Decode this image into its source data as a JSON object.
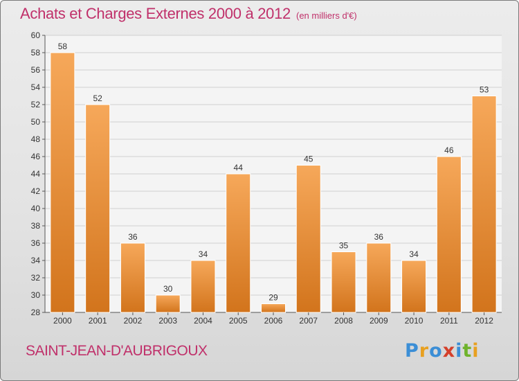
{
  "title": "Achats et Charges Externes 2000 à 2012",
  "subtitle": "(en milliers d'€)",
  "commune": "SAINT-JEAN-D'AUBRIGOUX",
  "logo": {
    "letters": [
      "P",
      "r",
      "o",
      "x",
      "i",
      "t",
      "i"
    ],
    "colors": [
      "#3b8ed6",
      "#e8a020",
      "#3b8ed6",
      "#d43f2a",
      "#3b8ed6",
      "#6fb32c",
      "#e8a020"
    ]
  },
  "colors": {
    "bar_light": "#f6a85a",
    "bar_dark": "#d2741c",
    "title": "#c0306a",
    "text": "#333333",
    "grid": "#cfcfcf"
  },
  "chart_data": {
    "type": "bar",
    "categories": [
      "2000",
      "2001",
      "2002",
      "2003",
      "2004",
      "2005",
      "2006",
      "2007",
      "2008",
      "2009",
      "2010",
      "2011",
      "2012"
    ],
    "values": [
      58,
      52,
      36,
      30,
      34,
      44,
      29,
      45,
      35,
      36,
      34,
      46,
      53
    ],
    "data_labels": [
      "58",
      "52",
      "36",
      "30",
      "34",
      "44",
      "29",
      "45",
      "35",
      "36",
      "34",
      "46",
      "53"
    ],
    "yticks": [
      "28",
      "30",
      "32",
      "34",
      "36",
      "38",
      "40",
      "42",
      "44",
      "46",
      "48",
      "50",
      "52",
      "54",
      "56",
      "58",
      "60"
    ],
    "ylim": [
      28,
      60
    ],
    "grid": true
  }
}
